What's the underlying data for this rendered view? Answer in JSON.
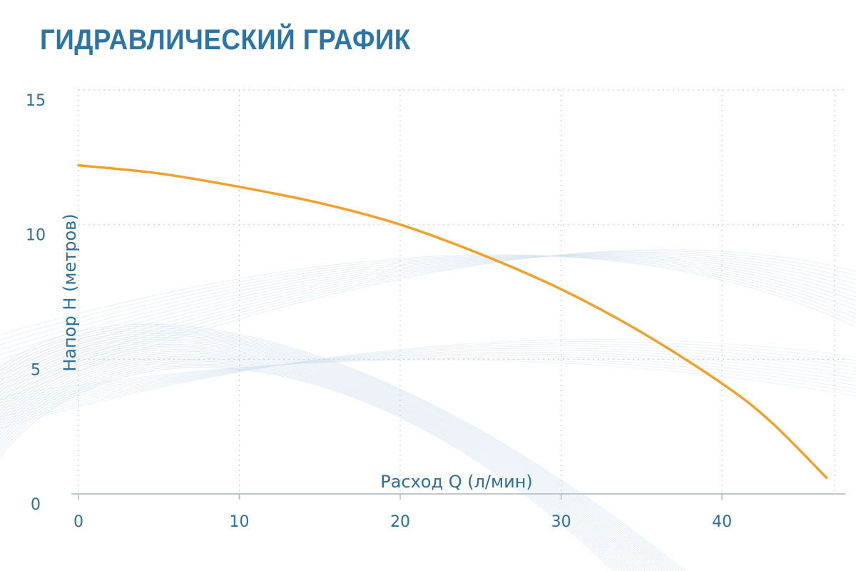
{
  "title": "ГИДРАВЛИЧЕСКИЙ ГРАФИК",
  "colors": {
    "title": "#2a74a6",
    "axis_text": "#2a6f9a",
    "curve": "#f0a12c",
    "grid": "#c9ced4",
    "decor": "#d5e3ee"
  },
  "chart_data": {
    "type": "line",
    "title": "ГИДРАВЛИЧЕСКИЙ ГРАФИК",
    "xlabel": "Расход Q (л/мин)",
    "ylabel": "Напор H (метров)",
    "xlim": [
      0,
      47
    ],
    "ylim": [
      0,
      15
    ],
    "x_ticks": [
      0,
      10,
      20,
      30,
      40
    ],
    "y_ticks": [
      0,
      5,
      10,
      15
    ],
    "grid": true,
    "series": [
      {
        "x": [
          0,
          5,
          10,
          15,
          20,
          25,
          30,
          35,
          40,
          43,
          46.5
        ],
        "y": [
          12.2,
          11.9,
          11.4,
          10.8,
          10.0,
          8.9,
          7.6,
          6.0,
          4.1,
          2.7,
          0.6
        ]
      }
    ]
  }
}
